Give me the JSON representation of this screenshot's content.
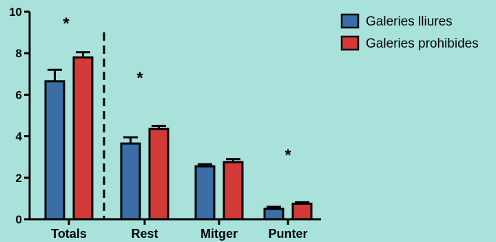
{
  "chart_data": {
    "type": "bar",
    "categories": [
      "Totals",
      "Rest",
      "Mitger",
      "Punter"
    ],
    "series": [
      {
        "name": "Galeries lliures",
        "color": "#3a6ea5",
        "values": [
          6.65,
          3.65,
          2.55,
          0.5
        ],
        "errors": [
          0.55,
          0.3,
          0.1,
          0.1
        ]
      },
      {
        "name": "Galeries prohibides",
        "color": "#d13a36",
        "values": [
          7.8,
          4.35,
          2.75,
          0.75
        ],
        "errors": [
          0.25,
          0.15,
          0.15,
          0.07
        ]
      }
    ],
    "ylim": [
      0,
      10
    ],
    "yticks": [
      "0",
      "2",
      "4",
      "6",
      "8",
      "10"
    ],
    "annotations": [
      "*",
      "*",
      "*"
    ],
    "legend_position": "top-right",
    "grid": false
  }
}
